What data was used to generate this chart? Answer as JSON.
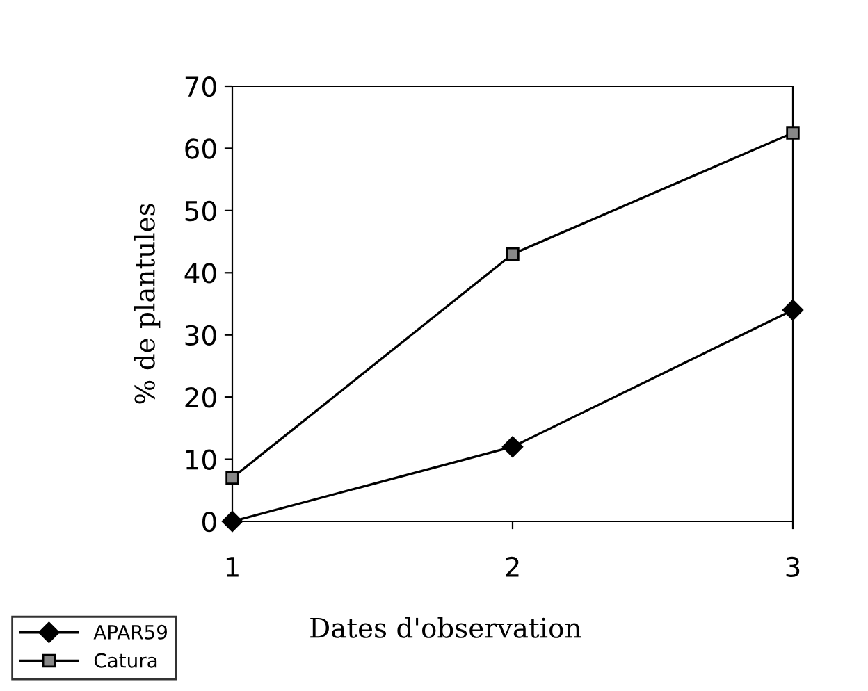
{
  "chart_data": {
    "type": "line",
    "xlabel": "Dates d'observation",
    "ylabel": "% de plantules",
    "x": [
      1,
      2,
      3
    ],
    "xlim": [
      1,
      3
    ],
    "xticks": [
      1,
      2,
      3
    ],
    "ylim": [
      0,
      70
    ],
    "yticks": [
      0,
      10,
      20,
      30,
      40,
      50,
      60,
      70
    ],
    "series": [
      {
        "name": "APAR59",
        "color": "#000000",
        "values": [
          0,
          12,
          34
        ],
        "marker": "diamond"
      },
      {
        "name": "Catura",
        "color": "#000000",
        "values": [
          7,
          43,
          62.5
        ],
        "marker": "square"
      }
    ],
    "grid": false,
    "legend": "bottom left",
    "line_style": "solid"
  }
}
